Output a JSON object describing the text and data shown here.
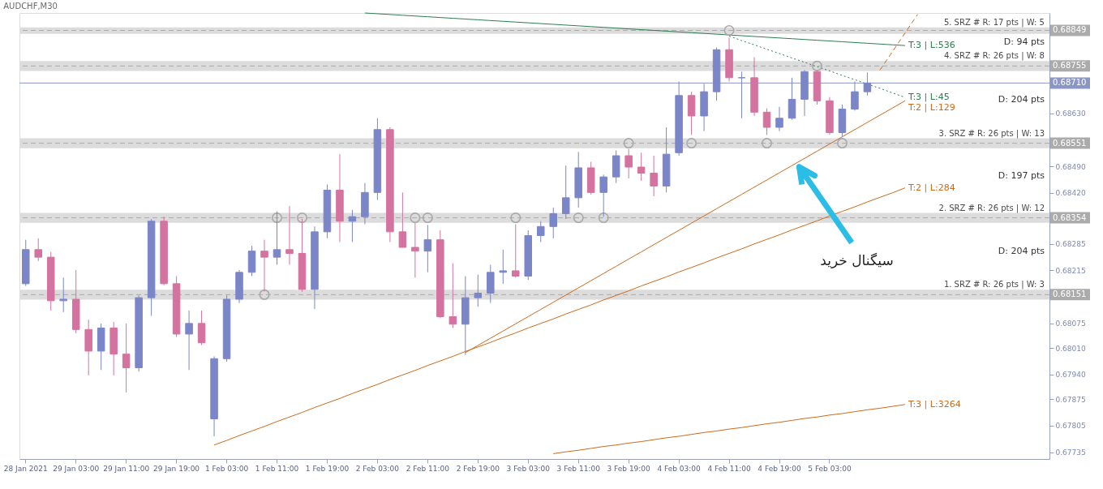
{
  "chart_data": {
    "type": "candlestick",
    "title": "AUDCHF,M30",
    "categories": [
      "28 Jan 2021",
      null,
      null,
      null,
      "29 Jan 03:00",
      null,
      null,
      null,
      "29 Jan 11:00",
      null,
      null,
      null,
      "29 Jan 19:00",
      null,
      null,
      null,
      "1 Feb 03:00",
      null,
      null,
      null,
      "1 Feb 11:00",
      null,
      null,
      null,
      "1 Feb 19:00",
      null,
      null,
      null,
      "2 Feb 03:00",
      null,
      null,
      null,
      "2 Feb 11:00",
      null,
      null,
      null,
      "2 Feb 19:00",
      null,
      null,
      null,
      "3 Feb 03:00",
      null,
      null,
      null,
      "3 Feb 11:00",
      null,
      null,
      null,
      "3 Feb 19:00",
      null,
      null,
      null,
      "4 Feb 03:00",
      null,
      null,
      null,
      "4 Feb 11:00",
      null,
      null,
      null,
      "4 Feb 19:00",
      null,
      null,
      null,
      "5 Feb 03:00",
      null,
      null,
      null,
      null,
      null,
      null,
      null,
      null,
      null,
      null,
      null,
      null,
      null,
      null,
      null,
      null,
      null
    ],
    "ohlc": [
      [
        0.6818,
        0.68296,
        0.68174,
        0.6827
      ],
      [
        0.6827,
        0.683,
        0.6824,
        0.6825
      ],
      [
        0.6825,
        0.68264,
        0.68109,
        0.68135
      ],
      [
        0.68135,
        0.68196,
        0.68105,
        0.68139
      ],
      [
        0.68139,
        0.68216,
        0.68049,
        0.68059
      ],
      [
        0.68059,
        0.68085,
        0.67938,
        0.68002
      ],
      [
        0.68002,
        0.68075,
        0.67952,
        0.68063
      ],
      [
        0.68063,
        0.68079,
        0.67938,
        0.67994
      ],
      [
        0.67994,
        0.68075,
        0.67893,
        0.67958
      ],
      [
        0.67958,
        0.68149,
        0.67948,
        0.68143
      ],
      [
        0.68143,
        0.68351,
        0.68095,
        0.68345
      ],
      [
        0.68345,
        0.68357,
        0.68176,
        0.6818
      ],
      [
        0.6818,
        0.682,
        0.68039,
        0.68047
      ],
      [
        0.68047,
        0.68109,
        0.67952,
        0.68075
      ],
      [
        0.68075,
        0.68109,
        0.68018,
        0.68024
      ],
      [
        0.67823,
        0.67988,
        0.67777,
        0.67982
      ],
      [
        0.67982,
        0.68149,
        0.67974,
        0.68139
      ],
      [
        0.68139,
        0.68216,
        0.68129,
        0.6821
      ],
      [
        0.6821,
        0.6828,
        0.682,
        0.68266
      ],
      [
        0.68266,
        0.68296,
        0.68159,
        0.6825
      ],
      [
        0.6825,
        0.68371,
        0.6823,
        0.6827
      ],
      [
        0.6827,
        0.68385,
        0.6823,
        0.6826
      ],
      [
        0.6826,
        0.68351,
        0.68159,
        0.68165
      ],
      [
        0.68165,
        0.68331,
        0.68113,
        0.68317
      ],
      [
        0.68317,
        0.68442,
        0.683,
        0.68427
      ],
      [
        0.68427,
        0.68522,
        0.6829,
        0.68345
      ],
      [
        0.68345,
        0.68375,
        0.6829,
        0.68357
      ],
      [
        0.68357,
        0.68446,
        0.68337,
        0.68421
      ],
      [
        0.68421,
        0.68617,
        0.68401,
        0.68587
      ],
      [
        0.68587,
        0.68593,
        0.6829,
        0.68317
      ],
      [
        0.68317,
        0.68421,
        0.68276,
        0.68276
      ],
      [
        0.68276,
        0.68341,
        0.68196,
        0.68266
      ],
      [
        0.68266,
        0.68335,
        0.6821,
        0.68296
      ],
      [
        0.68296,
        0.68321,
        0.68089,
        0.68093
      ],
      [
        0.68093,
        0.68234,
        0.68063,
        0.68073
      ],
      [
        0.68073,
        0.682,
        0.67992,
        0.68143
      ],
      [
        0.68143,
        0.68204,
        0.68119,
        0.68155
      ],
      [
        0.68155,
        0.6823,
        0.68129,
        0.6821
      ],
      [
        0.6821,
        0.6827,
        0.6818,
        0.68214
      ],
      [
        0.68214,
        0.68337,
        0.68196,
        0.682
      ],
      [
        0.682,
        0.68321,
        0.6819,
        0.68307
      ],
      [
        0.68307,
        0.68345,
        0.6829,
        0.68331
      ],
      [
        0.68331,
        0.68381,
        0.683,
        0.68365
      ],
      [
        0.68365,
        0.68492,
        0.68351,
        0.68407
      ],
      [
        0.68407,
        0.68528,
        0.68381,
        0.68486
      ],
      [
        0.68486,
        0.68502,
        0.68415,
        0.68421
      ],
      [
        0.68421,
        0.68468,
        0.68357,
        0.68462
      ],
      [
        0.68462,
        0.68532,
        0.68446,
        0.68518
      ],
      [
        0.68518,
        0.68536,
        0.68458,
        0.68488
      ],
      [
        0.68488,
        0.68526,
        0.68452,
        0.68472
      ],
      [
        0.68472,
        0.68518,
        0.68411,
        0.68438
      ],
      [
        0.68438,
        0.68593,
        0.68421,
        0.68522
      ],
      [
        0.68526,
        0.68714,
        0.68518,
        0.68677
      ],
      [
        0.68677,
        0.68687,
        0.68573,
        0.68623
      ],
      [
        0.68623,
        0.68708,
        0.68583,
        0.68687
      ],
      [
        0.68687,
        0.68804,
        0.68663,
        0.68798
      ],
      [
        0.68798,
        0.6883,
        0.68714,
        0.68724
      ],
      [
        0.68724,
        0.6874,
        0.68617,
        0.68724
      ],
      [
        0.68724,
        0.68778,
        0.68623,
        0.68633
      ],
      [
        0.68633,
        0.68643,
        0.68573,
        0.68593
      ],
      [
        0.68593,
        0.68647,
        0.68583,
        0.68617
      ],
      [
        0.68617,
        0.68724,
        0.68613,
        0.68667
      ],
      [
        0.68667,
        0.68744,
        0.68623,
        0.6874
      ],
      [
        0.6874,
        0.68744,
        0.68653,
        0.68663
      ],
      [
        0.68663,
        0.68673,
        0.68573,
        0.68579
      ],
      [
        0.68579,
        0.68653,
        0.68568,
        0.68641
      ],
      [
        0.68641,
        0.68714,
        0.68637,
        0.68687
      ],
      [
        0.68687,
        0.68738,
        0.68677,
        0.6871
      ],
      null,
      null,
      null,
      null,
      null,
      null,
      null,
      null,
      null,
      null,
      null,
      null,
      null,
      null
    ],
    "colors": [
      "#7b86c9",
      "#d4739f",
      "#d4739f",
      "#7b86c9",
      "#d4739f",
      "#d4739f",
      "#7b86c9",
      "#d4739f",
      "#d4739f",
      "#7b86c9",
      "#7b86c9",
      "#d4739f",
      "#d4739f",
      "#7b86c9",
      "#d4739f",
      "#7b86c9",
      "#7b86c9",
      "#7b86c9",
      "#7b86c9",
      "#d4739f",
      "#7b86c9",
      "#d4739f",
      "#d4739f",
      "#7b86c9",
      "#7b86c9",
      "#d4739f",
      "#7b86c9",
      "#7b86c9",
      "#7b86c9",
      "#d4739f",
      "#d4739f",
      "#d4739f",
      "#7b86c9",
      "#d4739f",
      "#d4739f",
      "#7b86c9",
      "#7b86c9",
      "#7b86c9",
      "#7b86c9",
      "#d4739f",
      "#7b86c9",
      "#7b86c9",
      "#7b86c9",
      "#7b86c9",
      "#7b86c9",
      "#d4739f",
      "#7b86c9",
      "#7b86c9",
      "#d4739f",
      "#d4739f",
      "#d4739f",
      "#7b86c9",
      "#7b86c9",
      "#d4739f",
      "#7b86c9",
      "#7b86c9",
      "#d4739f",
      "#7b86c9",
      "#d4739f",
      "#d4739f",
      "#7b86c9",
      "#7b86c9",
      "#7b86c9",
      "#d4739f",
      "#d4739f",
      "#7b86c9",
      "#7b86c9",
      "#7b86c9",
      null,
      null,
      null,
      null,
      null,
      null,
      null,
      null,
      null,
      null,
      null,
      null,
      null,
      null
    ],
    "series": [
      {
        "type": "line",
        "name": "T:3 | L:536",
        "color": "#2e7d4f",
        "line_style": "solid",
        "values": [
          null,
          null,
          null,
          null,
          null,
          null,
          null,
          null,
          null,
          null,
          null,
          null,
          null,
          null,
          null,
          null,
          null,
          null,
          null,
          null,
          null,
          null,
          null,
          null,
          null,
          null,
          null,
          0.68895,
          0.68893,
          0.68891,
          0.68889,
          0.68887,
          0.68885,
          0.68883,
          0.68881,
          0.68879,
          0.68877,
          0.68875,
          0.68873,
          0.68871,
          0.68869,
          0.68867,
          0.68865,
          0.68863,
          0.68861,
          0.68859,
          0.68857,
          0.68855,
          0.68853,
          0.68851,
          0.68849,
          0.68847,
          0.68845,
          0.68843,
          0.68841,
          0.68839,
          0.68837,
          0.68835,
          0.68833,
          0.68831,
          0.68829,
          0.68827,
          0.68825,
          0.68823,
          0.68821,
          0.68819,
          0.68817,
          0.68815,
          0.68813,
          0.68811,
          0.68809,
          null,
          null,
          null,
          null,
          null,
          null,
          null,
          null,
          null,
          null,
          null
        ]
      },
      {
        "type": "line",
        "name": "T:2 | L:129",
        "color": "#cc6a1c",
        "line_style": "solid",
        "values": [
          null,
          null,
          null,
          null,
          null,
          null,
          null,
          null,
          null,
          null,
          null,
          null,
          null,
          null,
          null,
          null,
          null,
          null,
          null,
          null,
          null,
          null,
          null,
          null,
          null,
          null,
          null,
          null,
          null,
          null,
          null,
          null,
          null,
          null,
          null,
          0.67998,
          0.68017,
          0.68036,
          0.68055,
          0.68074,
          0.68093,
          0.68112,
          0.68131,
          0.6815,
          0.68169,
          0.68188,
          0.68207,
          0.68226,
          0.68245,
          0.68264,
          0.68283,
          0.68302,
          0.68321,
          0.6834,
          0.68359,
          0.68378,
          0.68397,
          0.68416,
          0.68435,
          0.68454,
          0.68473,
          0.68492,
          0.68511,
          0.6853,
          0.68549,
          0.68568,
          0.68587,
          0.68606,
          0.68625,
          0.68644,
          0.68663,
          null,
          null,
          null,
          null,
          null,
          null,
          null,
          null,
          null,
          null,
          null
        ]
      },
      {
        "type": "line",
        "name": "T:2 | L:284",
        "color": "#cc6a1c",
        "line_style": "solid",
        "values": [
          null,
          null,
          null,
          null,
          null,
          null,
          null,
          null,
          null,
          null,
          null,
          null,
          null,
          null,
          null,
          0.67754,
          0.67766,
          0.67779,
          0.67791,
          0.67803,
          0.67816,
          0.67828,
          0.6784,
          0.67853,
          0.67865,
          0.67877,
          0.6789,
          0.67902,
          0.67914,
          0.67927,
          0.67939,
          0.67951,
          0.67964,
          0.67976,
          0.67988,
          0.68001,
          0.68013,
          0.68025,
          0.68038,
          0.6805,
          0.68063,
          0.68075,
          0.68087,
          0.681,
          0.68112,
          0.68124,
          0.68137,
          0.68149,
          0.68161,
          0.68174,
          0.68186,
          0.68198,
          0.68211,
          0.68223,
          0.68235,
          0.68248,
          0.6826,
          0.68272,
          0.68285,
          0.68297,
          0.68309,
          0.68322,
          0.68334,
          0.68346,
          0.68359,
          0.68371,
          0.68383,
          0.68396,
          0.68408,
          0.6842,
          0.68433,
          null,
          null,
          null,
          null,
          null,
          null,
          null,
          null,
          null,
          null,
          null
        ]
      },
      {
        "type": "line",
        "name": "T:3 | L:3264",
        "color": "#cc6a1c",
        "line_style": "solid",
        "values": [
          null,
          null,
          null,
          null,
          null,
          null,
          null,
          null,
          null,
          null,
          null,
          null,
          null,
          null,
          null,
          null,
          null,
          null,
          null,
          null,
          null,
          null,
          null,
          null,
          null,
          null,
          null,
          null,
          null,
          null,
          null,
          null,
          null,
          null,
          null,
          null,
          null,
          null,
          null,
          null,
          null,
          null,
          0.67731,
          0.67736,
          0.6774,
          0.67745,
          0.6775,
          0.67754,
          0.67759,
          0.67763,
          0.67768,
          0.67773,
          0.67777,
          0.67782,
          0.67787,
          0.67791,
          0.67796,
          0.678,
          0.67805,
          0.6781,
          0.67814,
          0.67819,
          0.67824,
          0.67828,
          0.67833,
          0.67837,
          0.67842,
          0.67847,
          0.67851,
          0.67856,
          0.67861,
          null,
          null,
          null,
          null,
          null,
          null,
          null,
          null,
          null,
          null,
          null
        ]
      },
      {
        "type": "line",
        "name": "T:3 | L:45",
        "color": "#2e7d4f",
        "line_style": "dotted",
        "values": [
          null,
          null,
          null,
          null,
          null,
          null,
          null,
          null,
          null,
          null,
          null,
          null,
          null,
          null,
          null,
          null,
          null,
          null,
          null,
          null,
          null,
          null,
          null,
          null,
          null,
          null,
          null,
          null,
          null,
          null,
          null,
          null,
          null,
          null,
          null,
          null,
          null,
          null,
          null,
          null,
          null,
          null,
          null,
          null,
          null,
          null,
          null,
          null,
          null,
          null,
          null,
          null,
          null,
          null,
          null,
          null,
          0.68834,
          0.68822,
          0.68811,
          0.68799,
          0.68788,
          0.68776,
          0.68765,
          0.68753,
          0.68742,
          0.6873,
          0.68719,
          0.68707,
          0.68696,
          0.68684,
          0.68672,
          null,
          null,
          null,
          null,
          null,
          null,
          null,
          null,
          null,
          null,
          null
        ]
      },
      {
        "type": "line",
        "color": "#cc6a1c",
        "line_style": "dashed",
        "values": [
          null,
          null,
          null,
          null,
          null,
          null,
          null,
          null,
          null,
          null,
          null,
          null,
          null,
          null,
          null,
          null,
          null,
          null,
          null,
          null,
          null,
          null,
          null,
          null,
          null,
          null,
          null,
          null,
          null,
          null,
          null,
          null,
          null,
          null,
          null,
          null,
          null,
          null,
          null,
          null,
          null,
          null,
          null,
          null,
          null,
          null,
          null,
          null,
          null,
          null,
          null,
          null,
          null,
          null,
          null,
          null,
          null,
          null,
          null,
          null,
          null,
          null,
          null,
          null,
          null,
          null,
          null,
          null,
          0.68744,
          0.68793,
          0.68842,
          0.68891,
          null,
          null,
          null,
          null,
          null,
          null,
          null,
          null,
          null,
          null
        ]
      },
      {
        "type": "scatter",
        "color": "#a9a9a9",
        "marker": "circle",
        "values": [
          null,
          null,
          null,
          null,
          null,
          null,
          null,
          null,
          null,
          null,
          null,
          null,
          null,
          null,
          null,
          null,
          null,
          null,
          null,
          0.68151,
          0.68354,
          null,
          0.68354,
          null,
          null,
          null,
          null,
          null,
          null,
          null,
          null,
          0.68354,
          0.68354,
          null,
          null,
          null,
          null,
          null,
          null,
          0.68354,
          null,
          null,
          null,
          null,
          0.68354,
          null,
          0.68354,
          null,
          0.68551,
          null,
          null,
          null,
          null,
          0.68551,
          null,
          null,
          0.68849,
          null,
          null,
          0.68551,
          null,
          null,
          null,
          0.68755,
          null,
          0.68551,
          null,
          null,
          null,
          null,
          null,
          null,
          null,
          null,
          null,
          null,
          null,
          null,
          null,
          null,
          null,
          null
        ]
      }
    ],
    "ylim": [
      0.67717,
      0.68895
    ],
    "yticks": [
      0.67735,
      0.67805,
      0.67875,
      {
        "value": 0.6794,
        "label": "0.67940"
      },
      {
        "value": 0.6801,
        "label": "0.68010"
      },
      0.68075,
      0.68215,
      0.68285,
      {
        "value": 0.6842,
        "label": "0.68420"
      },
      {
        "value": 0.6849,
        "label": "0.68490"
      },
      {
        "value": 0.6863,
        "label": "0.68630"
      }
    ],
    "bands": [
      {
        "axis": "y",
        "from": 0.6884,
        "to": 0.68857,
        "label": "5. SRZ # R: 17 pts | W: 5",
        "color": "#dcdcdc"
      },
      {
        "axis": "y",
        "from": 0.68742,
        "to": 0.68768,
        "label": "4. SRZ # R: 26 pts | W: 8",
        "color": "#dcdcdc"
      },
      {
        "axis": "y",
        "from": 0.68538,
        "to": 0.68564,
        "label": "3. SRZ # R: 26 pts | W: 13",
        "color": "#dcdcdc"
      },
      {
        "axis": "y",
        "from": 0.68341,
        "to": 0.68367,
        "label": "2. SRZ # R: 26 pts | W: 12",
        "color": "#dcdcdc"
      },
      {
        "axis": "y",
        "from": 0.68138,
        "to": 0.68164,
        "label": "1. SRZ # R: 26 pts | W: 3",
        "color": "#dcdcdc"
      }
    ],
    "ref_lines": [
      {
        "axis": "y",
        "value": 0.68849,
        "label": "0.68849",
        "color": "#ababab",
        "line_style": "dashed"
      },
      {
        "axis": "y",
        "value": 0.68755,
        "label": "0.68755",
        "color": "#ababab",
        "line_style": "dashed"
      },
      {
        "axis": "y",
        "value": 0.6871,
        "label": "0.68710",
        "color": "#8c96c4",
        "line_style": "solid"
      },
      {
        "axis": "y",
        "value": 0.68551,
        "label": "0.68551",
        "color": "#ababab",
        "line_style": "dashed"
      },
      {
        "axis": "y",
        "value": 0.68354,
        "label": "0.68354",
        "color": "#ababab",
        "line_style": "dashed"
      },
      {
        "axis": "y",
        "value": 0.68151,
        "label": "0.68151",
        "color": "#ababab",
        "line_style": "dashed"
      }
    ],
    "annotations": [
      "D: 94 pts",
      "D: 204 pts",
      "D: 197 pts",
      "D: 204 pts",
      "سیگنال خرید"
    ],
    "grid": false
  }
}
